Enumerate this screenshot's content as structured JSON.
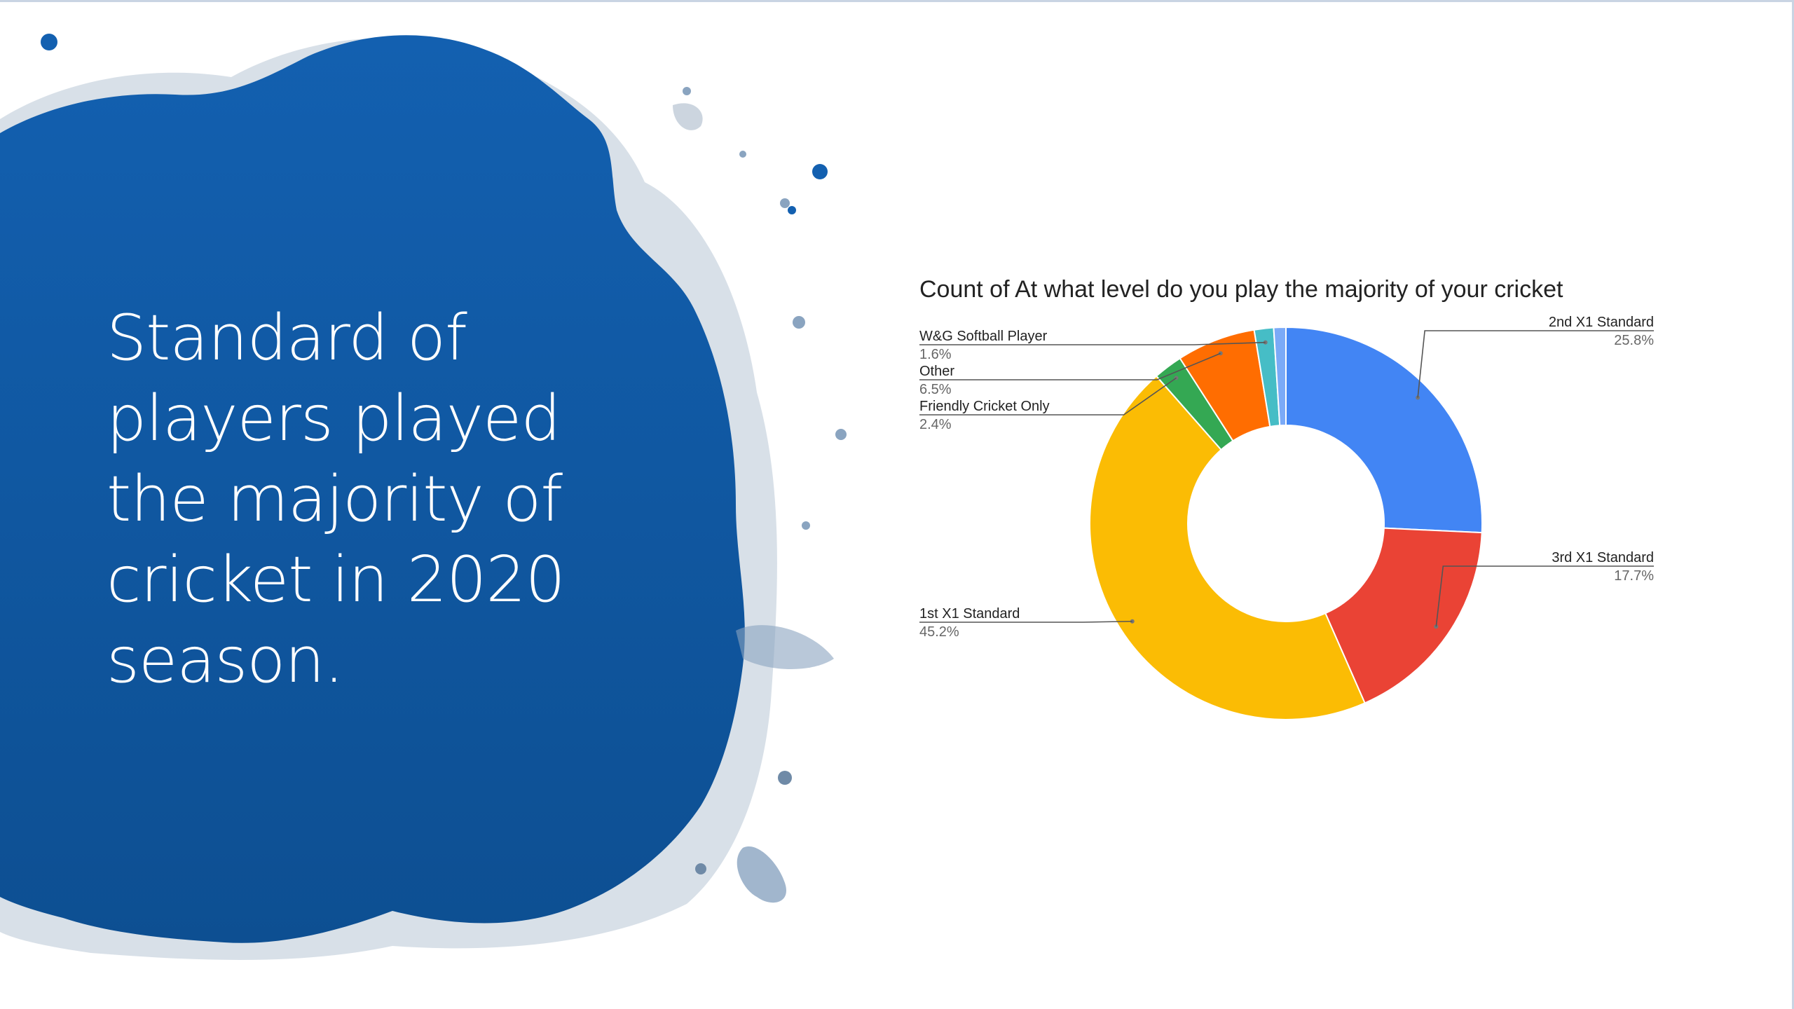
{
  "slide": {
    "title": "Standard of players played the majority of cricket in 2020 season."
  },
  "colors": {
    "splash": "#0f5aa6",
    "2nd X1 Standard": "#4285f4",
    "3rd X1 Standard": "#ea4335",
    "1st X1 Standard": "#fbbc04",
    "Friendly Cricket Only": "#34a853",
    "Other": "#ff6d01",
    "W&G Softball Player": "#46bdc6",
    "extra": "#7baaf7"
  },
  "chart_data": {
    "type": "pie",
    "style": "donut",
    "title": "Count of At what level do you play the majority of your cricket",
    "slices": [
      {
        "label": "2nd X1 Standard",
        "value": 25.8,
        "pct_label": "25.8%",
        "color": "#4285f4",
        "label_side": "right"
      },
      {
        "label": "3rd X1 Standard",
        "value": 17.7,
        "pct_label": "17.7%",
        "color": "#ea4335",
        "label_side": "right"
      },
      {
        "label": "1st X1 Standard",
        "value": 45.2,
        "pct_label": "45.2%",
        "color": "#fbbc04",
        "label_side": "left"
      },
      {
        "label": "Friendly Cricket Only",
        "value": 2.4,
        "pct_label": "2.4%",
        "color": "#34a853",
        "label_side": "left"
      },
      {
        "label": "Other",
        "value": 6.5,
        "pct_label": "6.5%",
        "color": "#ff6d01",
        "label_side": "left"
      },
      {
        "label": "W&G Softball Player",
        "value": 1.6,
        "pct_label": "1.6%",
        "color": "#46bdc6",
        "label_side": "left"
      },
      {
        "label": "",
        "value": 1.0,
        "pct_label": "",
        "color": "#7baaf7",
        "label_side": "none"
      }
    ]
  }
}
